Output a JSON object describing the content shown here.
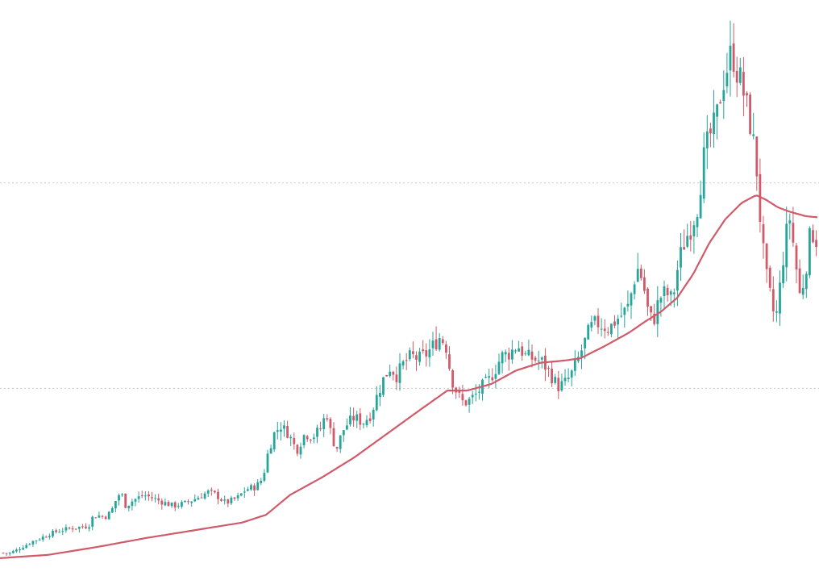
{
  "chart_data": {
    "type": "candlestick",
    "title": "",
    "xlabel": "",
    "ylabel": "",
    "grid": false,
    "legend": "none",
    "ylim": [
      0,
      100
    ],
    "reference_lines": [
      {
        "y": 68.2,
        "style": "dotted",
        "color": "#c8c8c8"
      },
      {
        "y": 31.2,
        "style": "dotted",
        "color": "#c8c8c8"
      }
    ],
    "colors": {
      "up": "#26a69a",
      "down": "#d15a6a",
      "ma": "#d15a6a"
    },
    "anchors": {
      "close": [
        [
          0,
          1.6
        ],
        [
          10,
          1.4
        ],
        [
          20,
          2.0
        ],
        [
          30,
          2.8
        ],
        [
          40,
          3.6
        ],
        [
          50,
          4.2
        ],
        [
          62,
          5.0
        ],
        [
          75,
          5.6
        ],
        [
          88,
          6.0
        ],
        [
          100,
          6.2
        ],
        [
          110,
          6.4
        ],
        [
          115,
          8.0
        ],
        [
          122,
          8.3
        ],
        [
          130,
          8.0
        ],
        [
          138,
          9.0
        ],
        [
          145,
          11.5
        ],
        [
          150,
          12.5
        ],
        [
          156,
          10.0
        ],
        [
          165,
          11.0
        ],
        [
          178,
          12.0
        ],
        [
          188,
          11.5
        ],
        [
          200,
          10.8
        ],
        [
          215,
          10.0
        ],
        [
          230,
          10.5
        ],
        [
          245,
          11.5
        ],
        [
          258,
          12.5
        ],
        [
          268,
          12.0
        ],
        [
          280,
          10.5
        ],
        [
          295,
          11.5
        ],
        [
          305,
          13.0
        ],
        [
          318,
          13.5
        ],
        [
          326,
          15.0
        ],
        [
          333,
          20.0
        ],
        [
          340,
          23.0
        ],
        [
          348,
          24.5
        ],
        [
          358,
          23.0
        ],
        [
          368,
          20.0
        ],
        [
          378,
          23.0
        ],
        [
          388,
          22.5
        ],
        [
          398,
          24.0
        ],
        [
          405,
          27.0
        ],
        [
          412,
          22.0
        ],
        [
          418,
          20.5
        ],
        [
          425,
          23.5
        ],
        [
          432,
          25.0
        ],
        [
          440,
          26.0
        ],
        [
          450,
          25.0
        ],
        [
          460,
          26.5
        ],
        [
          468,
          30.0
        ],
        [
          476,
          33.0
        ],
        [
          484,
          35.0
        ],
        [
          492,
          33.5
        ],
        [
          500,
          35.5
        ],
        [
          510,
          37.0
        ],
        [
          520,
          36.5
        ],
        [
          530,
          37.5
        ],
        [
          538,
          39.0
        ],
        [
          546,
          40.5
        ],
        [
          553,
          39.0
        ],
        [
          560,
          33.0
        ],
        [
          568,
          30.0
        ],
        [
          575,
          28.5
        ],
        [
          582,
          29.0
        ],
        [
          590,
          30.0
        ],
        [
          598,
          31.5
        ],
        [
          606,
          32.5
        ],
        [
          614,
          34.5
        ],
        [
          622,
          37.0
        ],
        [
          632,
          37.5
        ],
        [
          642,
          39.0
        ],
        [
          652,
          37.0
        ],
        [
          662,
          36.5
        ],
        [
          672,
          36.0
        ],
        [
          680,
          34.5
        ],
        [
          686,
          33.0
        ],
        [
          692,
          31.5
        ],
        [
          700,
          32.0
        ],
        [
          708,
          33.5
        ],
        [
          716,
          36.0
        ],
        [
          724,
          39.0
        ],
        [
          732,
          42.0
        ],
        [
          740,
          43.0
        ],
        [
          748,
          42.5
        ],
        [
          756,
          42.0
        ],
        [
          764,
          43.5
        ],
        [
          772,
          44.5
        ],
        [
          780,
          46.0
        ],
        [
          786,
          50.5
        ],
        [
          792,
          53.0
        ],
        [
          798,
          50.0
        ],
        [
          804,
          45.0
        ],
        [
          810,
          43.0
        ],
        [
          818,
          47.5
        ],
        [
          826,
          48.5
        ],
        [
          834,
          47.0
        ],
        [
          842,
          54.0
        ],
        [
          850,
          58.0
        ],
        [
          858,
          60.5
        ],
        [
          866,
          64.5
        ],
        [
          872,
          72.0
        ],
        [
          880,
          76.5
        ],
        [
          888,
          79.0
        ],
        [
          896,
          86.0
        ],
        [
          902,
          89.0
        ],
        [
          908,
          92.0
        ],
        [
          914,
          88.5
        ],
        [
          920,
          86.0
        ],
        [
          926,
          82.0
        ],
        [
          932,
          78.0
        ],
        [
          938,
          72.0
        ],
        [
          944,
          60.0
        ],
        [
          948,
          54.0
        ],
        [
          952,
          50.0
        ],
        [
          958,
          46.0
        ],
        [
          962,
          43.0
        ],
        [
          968,
          50.0
        ],
        [
          974,
          58.0
        ],
        [
          980,
          62.0
        ],
        [
          986,
          55.0
        ],
        [
          992,
          48.0
        ],
        [
          998,
          51.0
        ],
        [
          1004,
          58.0
        ],
        [
          1010,
          59.5
        ],
        [
          1016,
          56.0
        ]
      ],
      "ma": [
        [
          0,
          0.6
        ],
        [
          60,
          1.2
        ],
        [
          120,
          2.6
        ],
        [
          180,
          4.2
        ],
        [
          240,
          5.6
        ],
        [
          300,
          7.0
        ],
        [
          330,
          8.4
        ],
        [
          360,
          12.0
        ],
        [
          400,
          15.2
        ],
        [
          440,
          18.8
        ],
        [
          480,
          23.0
        ],
        [
          520,
          27.2
        ],
        [
          555,
          30.8
        ],
        [
          580,
          30.8
        ],
        [
          610,
          32.0
        ],
        [
          640,
          34.4
        ],
        [
          670,
          35.8
        ],
        [
          700,
          36.2
        ],
        [
          720,
          36.6
        ],
        [
          750,
          38.8
        ],
        [
          780,
          41.2
        ],
        [
          800,
          43.2
        ],
        [
          820,
          45.0
        ],
        [
          840,
          47.5
        ],
        [
          860,
          51.8
        ],
        [
          880,
          57.4
        ],
        [
          900,
          61.7
        ],
        [
          920,
          64.6
        ],
        [
          938,
          66.0
        ],
        [
          950,
          65.2
        ],
        [
          965,
          63.8
        ],
        [
          980,
          63.0
        ],
        [
          1000,
          62.2
        ],
        [
          1016,
          62.0
        ]
      ]
    }
  }
}
